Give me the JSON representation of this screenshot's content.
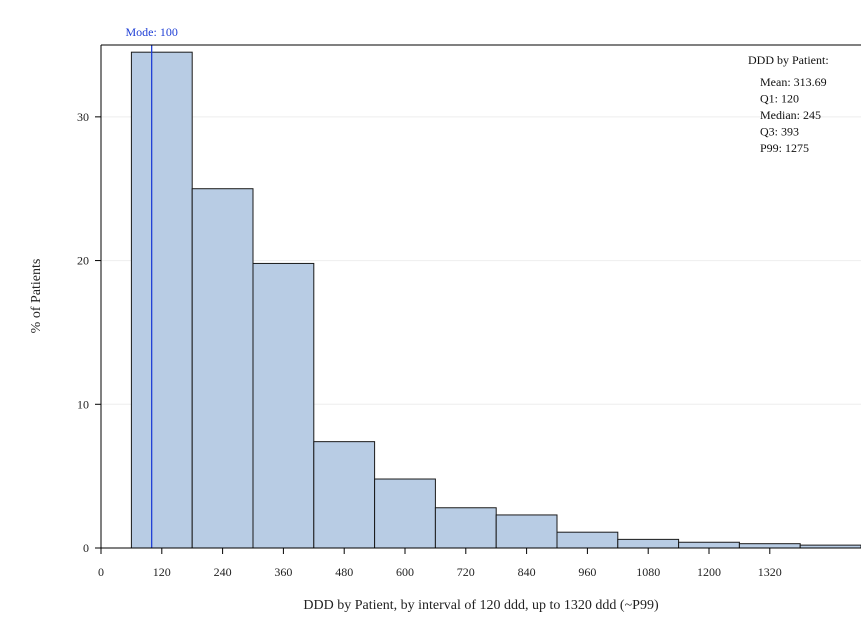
{
  "chart_data": {
    "type": "bar",
    "title": "",
    "xlabel": "DDD by Patient, by interval of 120 ddd, up to 1320 ddd (~P99)",
    "ylabel": "% of Patients",
    "bin_width": 120,
    "bins": [
      {
        "start": 60,
        "end": 180,
        "value": 34.5
      },
      {
        "start": 180,
        "end": 300,
        "value": 25.0
      },
      {
        "start": 300,
        "end": 420,
        "value": 19.8
      },
      {
        "start": 420,
        "end": 540,
        "value": 7.4
      },
      {
        "start": 540,
        "end": 660,
        "value": 4.8
      },
      {
        "start": 660,
        "end": 780,
        "value": 2.8
      },
      {
        "start": 780,
        "end": 900,
        "value": 2.3
      },
      {
        "start": 900,
        "end": 1020,
        "value": 1.1
      },
      {
        "start": 1020,
        "end": 1140,
        "value": 0.6
      },
      {
        "start": 1140,
        "end": 1260,
        "value": 0.4
      },
      {
        "start": 1260,
        "end": 1380,
        "value": 0.3
      },
      {
        "start": 1380,
        "end": 1500,
        "value": 0.2
      }
    ],
    "xlim": [
      0,
      1500
    ],
    "ylim": [
      0,
      35
    ],
    "x_ticks": [
      0,
      120,
      240,
      360,
      480,
      600,
      720,
      840,
      960,
      1080,
      1200,
      1320
    ],
    "y_ticks": [
      0,
      10,
      20,
      30
    ],
    "grid": "horizontal",
    "reference_line": {
      "x": 100,
      "label": "Mode: 100",
      "color": "#1f3fd6"
    },
    "inset": {
      "position": "top-right",
      "title": "DDD by Patient:",
      "lines": [
        "Mean: 313.69",
        "Q1: 120",
        "Median: 245",
        "Q3: 393",
        "P99: 1275"
      ]
    },
    "colors": {
      "bar_fill": "#b8cce4",
      "bar_stroke": "#1a1a1a",
      "grid": "#eeeeee",
      "axis": "#000000"
    }
  }
}
